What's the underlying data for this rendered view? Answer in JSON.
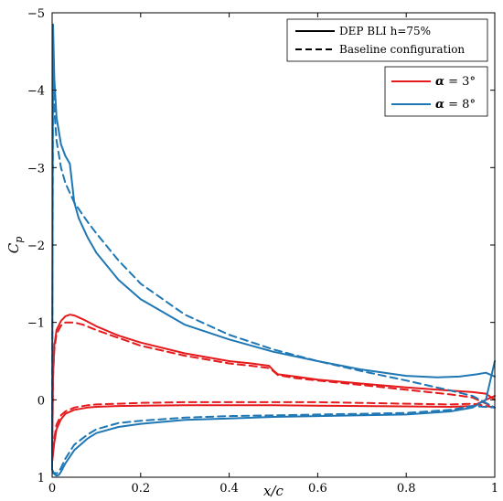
{
  "chart_data": {
    "type": "line",
    "xlabel": "x/c",
    "ylabel": "C_p",
    "xlim": [
      0,
      1
    ],
    "ylim": [
      1,
      -5
    ],
    "y_axis_inverted": true,
    "grid": false,
    "x_ticks": [
      0,
      0.2,
      0.4,
      0.6,
      0.8,
      1
    ],
    "x_tick_labels": [
      "0",
      "0.2",
      "0.4",
      "0.6",
      "0.8",
      "1"
    ],
    "y_ticks": [
      -5,
      -4,
      -3,
      -2,
      -1,
      0,
      1
    ],
    "y_tick_labels": [
      "−5",
      "−4",
      "−3",
      "−2",
      "−1",
      "0",
      "1"
    ],
    "legends": {
      "style": {
        "placement": "top-right",
        "entries": [
          {
            "label": "DEP BLI h=75%",
            "line_style": "solid"
          },
          {
            "label": "Baseline configuration",
            "line_style": "dashed"
          }
        ]
      },
      "alpha": {
        "placement": "top-right, below style legend",
        "entries": [
          {
            "label_symbol": "α",
            "label_value": " = 3°",
            "color": "#e41a1c"
          },
          {
            "label_symbol": "α",
            "label_value": " = 8°",
            "color": "#1f77b4"
          }
        ]
      }
    },
    "series": [
      {
        "alpha": 3,
        "configuration": "DEP BLI h=75%",
        "surface": "upper",
        "color": "#e41a1c",
        "line_style": "solid",
        "x": [
          0,
          0.002,
          0.005,
          0.01,
          0.02,
          0.03,
          0.04,
          0.05,
          0.07,
          0.1,
          0.15,
          0.2,
          0.3,
          0.4,
          0.45,
          0.49,
          0.5,
          0.51,
          0.55,
          0.6,
          0.7,
          0.8,
          0.9,
          0.95,
          0.98,
          1.0
        ],
        "y": [
          0.8,
          -0.3,
          -0.7,
          -0.9,
          -1.02,
          -1.08,
          -1.1,
          -1.09,
          -1.04,
          -0.95,
          -0.83,
          -0.74,
          -0.6,
          -0.5,
          -0.47,
          -0.44,
          -0.38,
          -0.33,
          -0.3,
          -0.26,
          -0.21,
          -0.16,
          -0.12,
          -0.1,
          -0.08,
          0.0
        ]
      },
      {
        "alpha": 3,
        "configuration": "DEP BLI h=75%",
        "surface": "lower",
        "color": "#e41a1c",
        "line_style": "solid",
        "x": [
          0,
          0.005,
          0.01,
          0.02,
          0.03,
          0.05,
          0.08,
          0.1,
          0.15,
          0.2,
          0.3,
          0.4,
          0.5,
          0.6,
          0.7,
          0.8,
          0.9,
          0.95,
          0.98,
          1.0
        ],
        "y": [
          0.8,
          0.55,
          0.38,
          0.25,
          0.18,
          0.13,
          0.1,
          0.09,
          0.08,
          0.075,
          0.07,
          0.07,
          0.07,
          0.075,
          0.08,
          0.085,
          0.09,
          0.08,
          0.0,
          -0.05
        ]
      },
      {
        "alpha": 3,
        "configuration": "Baseline configuration",
        "surface": "upper",
        "color": "#e41a1c",
        "line_style": "dashed",
        "x": [
          0,
          0.002,
          0.005,
          0.01,
          0.02,
          0.03,
          0.05,
          0.07,
          0.1,
          0.15,
          0.2,
          0.3,
          0.4,
          0.45,
          0.49,
          0.5,
          0.51,
          0.55,
          0.6,
          0.7,
          0.8,
          0.9,
          0.95,
          1.0
        ],
        "y": [
          0.8,
          -0.3,
          -0.65,
          -0.85,
          -0.96,
          -1.0,
          -1.0,
          -0.97,
          -0.9,
          -0.8,
          -0.7,
          -0.57,
          -0.47,
          -0.44,
          -0.41,
          -0.37,
          -0.32,
          -0.28,
          -0.25,
          -0.19,
          -0.13,
          -0.07,
          -0.03,
          0.1
        ]
      },
      {
        "alpha": 3,
        "configuration": "Baseline configuration",
        "surface": "lower",
        "color": "#e41a1c",
        "line_style": "dashed",
        "x": [
          0,
          0.005,
          0.01,
          0.02,
          0.03,
          0.05,
          0.08,
          0.1,
          0.15,
          0.2,
          0.3,
          0.4,
          0.5,
          0.6,
          0.7,
          0.8,
          0.9,
          0.95,
          1.0
        ],
        "y": [
          0.8,
          0.5,
          0.32,
          0.2,
          0.15,
          0.1,
          0.07,
          0.06,
          0.05,
          0.04,
          0.03,
          0.03,
          0.03,
          0.03,
          0.04,
          0.05,
          0.06,
          0.05,
          0.1
        ]
      },
      {
        "alpha": 8,
        "configuration": "DEP BLI h=75%",
        "surface": "upper",
        "color": "#1f77b4",
        "line_style": "solid",
        "x": [
          0,
          0.002,
          0.005,
          0.01,
          0.02,
          0.03,
          0.04,
          0.05,
          0.06,
          0.08,
          0.1,
          0.15,
          0.2,
          0.3,
          0.4,
          0.5,
          0.6,
          0.7,
          0.8,
          0.87,
          0.92,
          0.96,
          0.98,
          1.0
        ],
        "y": [
          0.9,
          -4.85,
          -4.15,
          -3.65,
          -3.3,
          -3.15,
          -3.05,
          -2.55,
          -2.35,
          -2.1,
          -1.9,
          -1.55,
          -1.3,
          -0.97,
          -0.78,
          -0.62,
          -0.5,
          -0.39,
          -0.31,
          -0.29,
          -0.3,
          -0.33,
          -0.35,
          -0.3
        ]
      },
      {
        "alpha": 8,
        "configuration": "DEP BLI h=75%",
        "surface": "lower",
        "color": "#1f77b4",
        "line_style": "solid",
        "x": [
          0,
          0.003,
          0.01,
          0.015,
          0.02,
          0.03,
          0.05,
          0.08,
          0.1,
          0.15,
          0.2,
          0.3,
          0.4,
          0.5,
          0.6,
          0.7,
          0.8,
          0.9,
          0.95,
          0.98,
          1.0
        ],
        "y": [
          0.9,
          0.95,
          0.98,
          0.97,
          0.93,
          0.82,
          0.65,
          0.5,
          0.43,
          0.35,
          0.31,
          0.26,
          0.24,
          0.22,
          0.21,
          0.2,
          0.19,
          0.15,
          0.1,
          0.0,
          -0.5
        ]
      },
      {
        "alpha": 8,
        "configuration": "Baseline configuration",
        "surface": "upper",
        "color": "#1f77b4",
        "line_style": "dashed",
        "x": [
          0,
          0.002,
          0.005,
          0.01,
          0.02,
          0.03,
          0.05,
          0.08,
          0.1,
          0.15,
          0.2,
          0.3,
          0.4,
          0.5,
          0.6,
          0.7,
          0.8,
          0.9,
          0.95,
          1.0
        ],
        "y": [
          0.9,
          -4.3,
          -3.75,
          -3.35,
          -3.0,
          -2.8,
          -2.55,
          -2.3,
          -2.15,
          -1.8,
          -1.5,
          -1.1,
          -0.84,
          -0.65,
          -0.5,
          -0.37,
          -0.25,
          -0.12,
          -0.05,
          0.1
        ]
      },
      {
        "alpha": 8,
        "configuration": "Baseline configuration",
        "surface": "lower",
        "color": "#1f77b4",
        "line_style": "dashed",
        "x": [
          0,
          0.003,
          0.01,
          0.015,
          0.02,
          0.03,
          0.05,
          0.08,
          0.1,
          0.15,
          0.2,
          0.3,
          0.4,
          0.5,
          0.6,
          0.7,
          0.8,
          0.9,
          0.95,
          1.0
        ],
        "y": [
          0.9,
          0.94,
          0.95,
          0.93,
          0.88,
          0.76,
          0.58,
          0.45,
          0.38,
          0.3,
          0.27,
          0.23,
          0.21,
          0.2,
          0.19,
          0.18,
          0.17,
          0.13,
          0.08,
          0.1
        ]
      }
    ]
  }
}
